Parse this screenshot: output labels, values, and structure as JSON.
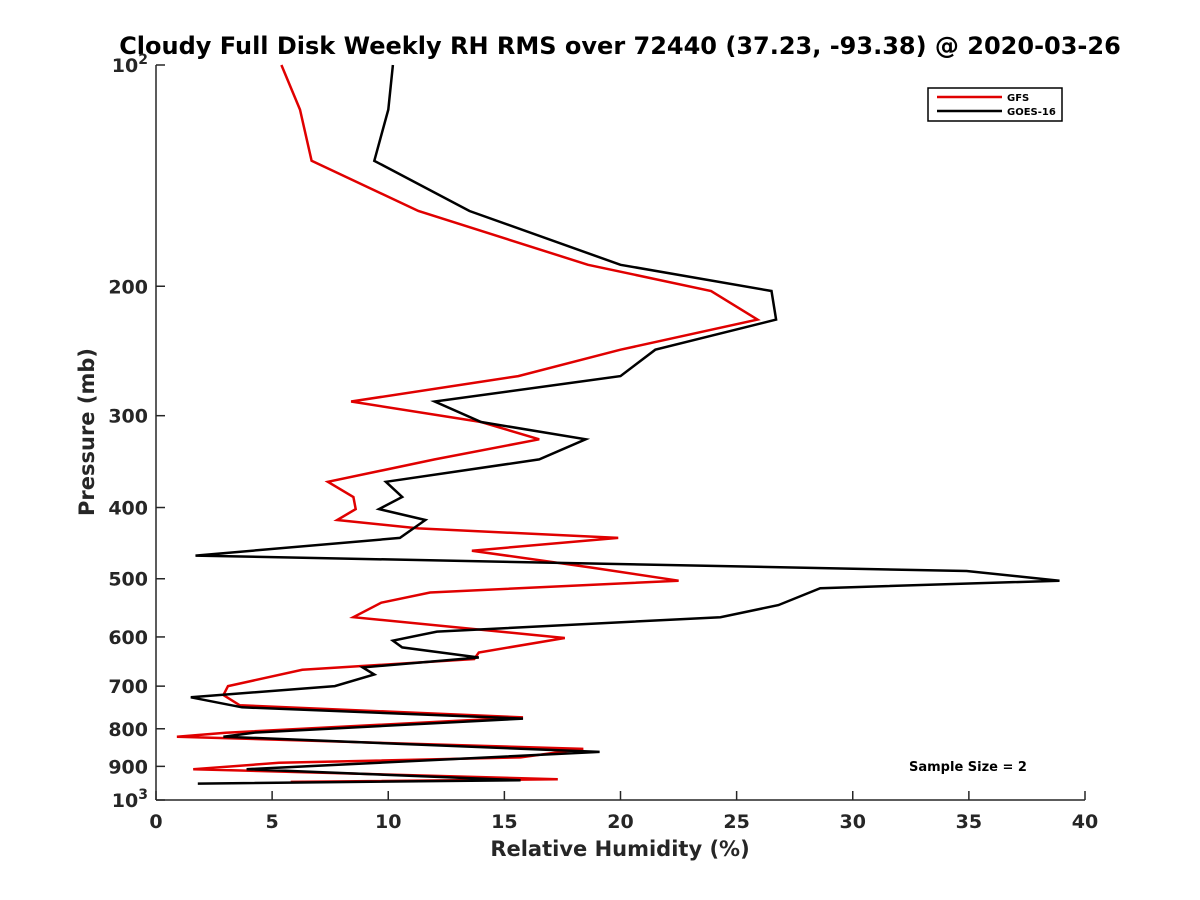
{
  "chart_data": {
    "type": "line",
    "title": "Cloudy Full Disk Weekly RH RMS over 72440 (37.23, -93.38) @ 2020-03-26",
    "xlabel": "Relative Humidity (%)",
    "ylabel": "Pressure (mb)",
    "xlim": [
      0,
      40
    ],
    "ylim": [
      100,
      1000
    ],
    "yscale": "log",
    "y_reversed": true,
    "x_ticks": [
      "0",
      "5",
      "10",
      "15",
      "20",
      "25",
      "30",
      "35",
      "40"
    ],
    "y_ticks": [
      {
        "value": 100,
        "label": "10",
        "sup": "2"
      },
      {
        "value": 200,
        "label": "200",
        "sup": ""
      },
      {
        "value": 300,
        "label": "300",
        "sup": ""
      },
      {
        "value": 400,
        "label": "400",
        "sup": ""
      },
      {
        "value": 500,
        "label": "500",
        "sup": ""
      },
      {
        "value": 600,
        "label": "600",
        "sup": ""
      },
      {
        "value": 700,
        "label": "700",
        "sup": ""
      },
      {
        "value": 800,
        "label": "800",
        "sup": ""
      },
      {
        "value": 900,
        "label": "900",
        "sup": ""
      },
      {
        "value": 1000,
        "label": "10",
        "sup": "3"
      }
    ],
    "legend": {
      "position": "top-right"
    },
    "annotation": "Sample Size = 2",
    "series": [
      {
        "name": "GFS",
        "color": "#e00000",
        "points": [
          [
            5.4,
            100
          ],
          [
            6.2,
            115
          ],
          [
            6.7,
            135
          ],
          [
            11.3,
            158
          ],
          [
            18.6,
            187
          ],
          [
            23.9,
            203
          ],
          [
            25.9,
            222
          ],
          [
            20.0,
            244
          ],
          [
            15.6,
            265
          ],
          [
            8.4,
            287
          ],
          [
            14.0,
            306
          ],
          [
            16.5,
            323
          ],
          [
            12.0,
            344
          ],
          [
            7.4,
            369
          ],
          [
            8.5,
            387
          ],
          [
            8.6,
            402
          ],
          [
            7.8,
            416
          ],
          [
            11.3,
            427
          ],
          [
            19.9,
            440
          ],
          [
            13.6,
            458
          ],
          [
            18.8,
            483
          ],
          [
            22.5,
            503
          ],
          [
            11.8,
            522
          ],
          [
            9.7,
            539
          ],
          [
            8.5,
            564
          ],
          [
            17.6,
            602
          ],
          [
            13.9,
            630
          ],
          [
            13.7,
            643
          ],
          [
            6.3,
            665
          ],
          [
            3.1,
            700
          ],
          [
            2.9,
            720
          ],
          [
            3.6,
            743
          ],
          [
            15.8,
            772
          ],
          [
            3.0,
            810
          ],
          [
            0.9,
            820
          ],
          [
            18.4,
            852
          ],
          [
            15.7,
            875
          ],
          [
            5.3,
            890
          ],
          [
            1.6,
            908
          ],
          [
            17.3,
            937
          ],
          [
            5.8,
            945
          ]
        ]
      },
      {
        "name": "GOES-16",
        "color": "#000000",
        "points": [
          [
            10.2,
            100
          ],
          [
            10.0,
            115
          ],
          [
            9.4,
            135
          ],
          [
            13.5,
            158
          ],
          [
            20.0,
            187
          ],
          [
            26.5,
            203
          ],
          [
            26.7,
            222
          ],
          [
            21.5,
            244
          ],
          [
            20.0,
            265
          ],
          [
            12.0,
            287
          ],
          [
            14.0,
            306
          ],
          [
            18.5,
            323
          ],
          [
            16.5,
            344
          ],
          [
            9.9,
            369
          ],
          [
            10.6,
            387
          ],
          [
            9.6,
            402
          ],
          [
            11.6,
            416
          ],
          [
            10.5,
            440
          ],
          [
            1.7,
            465
          ],
          [
            34.9,
            488
          ],
          [
            38.9,
            503
          ],
          [
            28.6,
            515
          ],
          [
            26.8,
            543
          ],
          [
            24.3,
            564
          ],
          [
            12.1,
            590
          ],
          [
            10.2,
            607
          ],
          [
            10.6,
            620
          ],
          [
            13.9,
            640
          ],
          [
            8.9,
            660
          ],
          [
            9.4,
            675
          ],
          [
            7.7,
            700
          ],
          [
            1.5,
            725
          ],
          [
            3.7,
            748
          ],
          [
            15.8,
            775
          ],
          [
            4.2,
            810
          ],
          [
            2.9,
            820
          ],
          [
            19.1,
            860
          ],
          [
            3.9,
            908
          ],
          [
            15.7,
            940
          ],
          [
            1.8,
            950
          ]
        ]
      }
    ]
  }
}
